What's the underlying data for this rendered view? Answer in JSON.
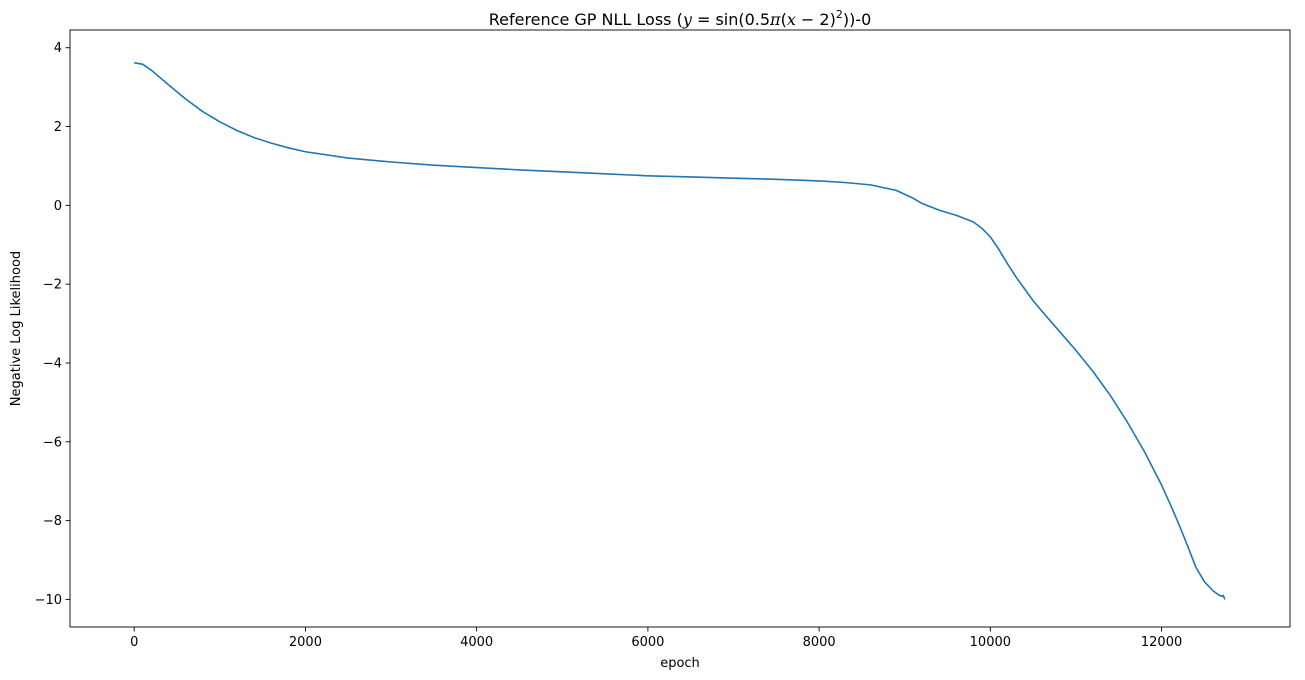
{
  "chart_data": {
    "type": "line",
    "title": "Reference GP NLL Loss (y = sin(0.5π(x − 2)²))-0",
    "title_parts": {
      "prefix": "Reference GP NLL Loss (",
      "y": "y",
      "eq": " = sin(0.5",
      "pi": "π",
      "x_open": "(",
      "x": "x",
      "minus": " − 2)",
      "sup": "2",
      "suffix": "))-0"
    },
    "xlabel": "epoch",
    "ylabel": "Negative Log Likelihood",
    "xlim": [
      -750,
      13500
    ],
    "ylim": [
      -10.7,
      4.45
    ],
    "x_ticks": [
      {
        "value": 0,
        "label": "0"
      },
      {
        "value": 2000,
        "label": "2000"
      },
      {
        "value": 4000,
        "label": "4000"
      },
      {
        "value": 6000,
        "label": "6000"
      },
      {
        "value": 8000,
        "label": "8000"
      },
      {
        "value": 10000,
        "label": "10000"
      },
      {
        "value": 12000,
        "label": "12000"
      }
    ],
    "y_ticks": [
      {
        "value": 4,
        "label": "4"
      },
      {
        "value": 2,
        "label": "2"
      },
      {
        "value": 0,
        "label": "0"
      },
      {
        "value": -2,
        "label": "−2"
      },
      {
        "value": -4,
        "label": "−4"
      },
      {
        "value": -6,
        "label": "−6"
      },
      {
        "value": -8,
        "label": "−8"
      },
      {
        "value": -10,
        "label": "−10"
      }
    ],
    "grid": false,
    "color": "#1f77b4",
    "series": [
      {
        "x": [
          0,
          100,
          200,
          400,
          600,
          800,
          1000,
          1200,
          1400,
          1600,
          1800,
          2000,
          2500,
          3000,
          3500,
          4000,
          4500,
          5000,
          5500,
          6000,
          6500,
          7000,
          7500,
          8000,
          8300,
          8600,
          8900,
          9100,
          9200,
          9400,
          9600,
          9800,
          9900,
          10000,
          10100,
          10200,
          10300,
          10400,
          10500,
          10600,
          10800,
          11000,
          11200,
          11400,
          11600,
          11800,
          12000,
          12100,
          12200,
          12300,
          12400,
          12500,
          12600,
          12650,
          12700,
          12720,
          12740
        ],
        "y": [
          3.62,
          3.58,
          3.43,
          3.06,
          2.7,
          2.38,
          2.12,
          1.9,
          1.72,
          1.58,
          1.46,
          1.36,
          1.2,
          1.1,
          1.02,
          0.96,
          0.9,
          0.85,
          0.8,
          0.75,
          0.72,
          0.69,
          0.66,
          0.62,
          0.58,
          0.52,
          0.38,
          0.18,
          0.05,
          -0.12,
          -0.25,
          -0.42,
          -0.58,
          -0.8,
          -1.12,
          -1.48,
          -1.82,
          -2.12,
          -2.42,
          -2.68,
          -3.18,
          -3.68,
          -4.22,
          -4.82,
          -5.5,
          -6.25,
          -7.1,
          -7.58,
          -8.08,
          -8.62,
          -9.18,
          -9.55,
          -9.78,
          -9.86,
          -9.92,
          -9.9,
          -10.0
        ]
      }
    ]
  }
}
